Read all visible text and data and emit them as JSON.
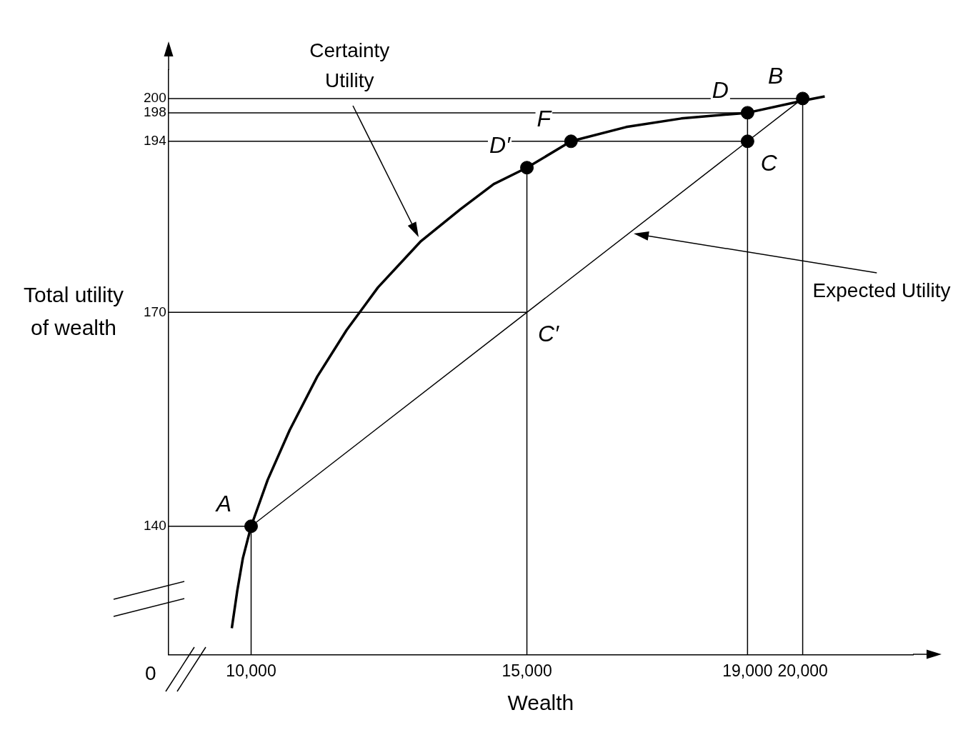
{
  "chart_data": {
    "type": "line",
    "xlabel": "Wealth",
    "ylabel": "Total utility of wealth",
    "xlim": [
      8500,
      22000
    ],
    "xticks": [
      {
        "value": 10000,
        "label": "10,000"
      },
      {
        "value": 15000,
        "label": "15,000"
      },
      {
        "value": 19000,
        "label": "19,000"
      },
      {
        "value": 20000,
        "label": "20,000"
      }
    ],
    "ylim": [
      122,
      204
    ],
    "yticks": [
      140,
      170,
      194,
      198,
      200
    ],
    "grid": false,
    "legend": false,
    "series": [
      {
        "type": "line",
        "color": "#000000",
        "x": [
          9650,
          9750,
          9850,
          10000,
          10300,
          10700,
          11200,
          11730,
          12300,
          13080,
          13800,
          14400,
          15000,
          15800,
          16800,
          17800,
          19000,
          20000,
          20400
        ],
        "values": [
          125.7,
          131,
          135.5,
          140,
          146.5,
          153.5,
          161,
          167.5,
          173.5,
          180,
          184.5,
          188,
          190.3,
          194,
          196,
          197.2,
          198,
          199.7,
          200.3
        ]
      },
      {
        "type": "line",
        "color": "#000000",
        "x": [
          10000,
          20000
        ],
        "values": [
          140,
          200
        ]
      },
      {
        "type": "line",
        "color": "#000000",
        "x": [
          8500,
          20000
        ],
        "values": [
          200,
          200
        ]
      },
      {
        "type": "line",
        "color": "#000000",
        "x": [
          8500,
          19000
        ],
        "values": [
          198,
          198
        ]
      },
      {
        "type": "line",
        "color": "#000000",
        "x": [
          8500,
          19000
        ],
        "values": [
          194,
          194
        ]
      },
      {
        "type": "line",
        "color": "#000000",
        "x": [
          8500,
          15000
        ],
        "values": [
          170,
          170
        ]
      },
      {
        "type": "line",
        "color": "#000000",
        "x": [
          8500,
          10000
        ],
        "values": [
          140,
          140
        ]
      },
      {
        "type": "line",
        "color": "#000000",
        "x": [
          10000,
          10000
        ],
        "values": [
          122,
          140
        ]
      },
      {
        "type": "line",
        "color": "#000000",
        "x": [
          15000,
          15000
        ],
        "values": [
          122,
          190.3
        ]
      },
      {
        "type": "line",
        "color": "#000000",
        "x": [
          19000,
          19000
        ],
        "values": [
          122,
          198
        ]
      },
      {
        "type": "line",
        "color": "#000000",
        "x": [
          20000,
          20000
        ],
        "values": [
          122,
          200
        ]
      },
      {
        "type": "scatter",
        "color": "#000000",
        "marker": "circle",
        "x": [
          10000,
          15000,
          15800,
          19000,
          19000,
          20000
        ],
        "values": [
          140,
          190.3,
          194,
          198,
          194,
          200
        ]
      }
    ],
    "annotations": [
      "0",
      "Certainty Utility",
      "Expected Utility",
      {
        "text": "A",
        "x": 10000,
        "y": 140
      },
      {
        "text": "B",
        "x": 20000,
        "y": 200
      },
      {
        "text": "C",
        "x": 19000,
        "y": 194
      },
      {
        "text": "C′",
        "x": 15000,
        "y": 170
      },
      {
        "text": "D",
        "x": 19000,
        "y": 198
      },
      {
        "text": "D′",
        "x": 15000,
        "y": 190.3
      },
      {
        "text": "F",
        "x": 15800,
        "y": 194
      }
    ]
  }
}
